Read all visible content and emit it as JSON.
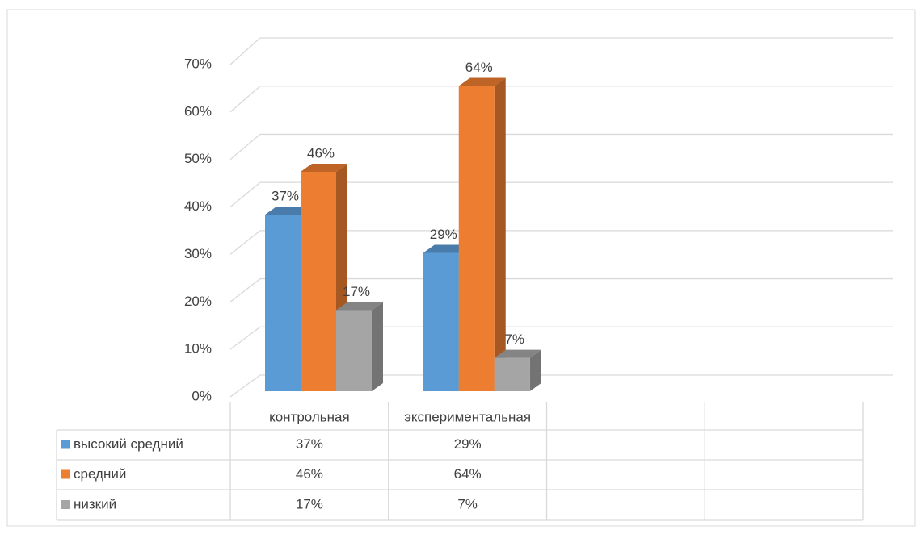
{
  "chart_data": {
    "type": "bar3d",
    "categories": [
      "контрольная",
      "экспериментальная",
      null,
      null
    ],
    "series": [
      {
        "name": "высокий средний",
        "color": "#5b9bd5",
        "values": [
          37,
          29,
          null,
          null
        ],
        "value_labels": [
          "37%",
          "29%",
          null,
          null
        ]
      },
      {
        "name": "средний",
        "color": "#ed7d31",
        "values": [
          46,
          64,
          null,
          null
        ],
        "value_labels": [
          "46%",
          "64%",
          null,
          null
        ]
      },
      {
        "name": "низкий",
        "color": "#a5a5a5",
        "values": [
          17,
          7,
          null,
          null
        ],
        "value_labels": [
          "17%",
          "7%",
          null,
          null
        ]
      }
    ],
    "ylim": [
      0,
      70
    ],
    "yticks": [
      {
        "value": 0,
        "label": "0%"
      },
      {
        "value": 10,
        "label": "10%"
      },
      {
        "value": 20,
        "label": "20%"
      },
      {
        "value": 30,
        "label": "30%"
      },
      {
        "value": 40,
        "label": "40%"
      },
      {
        "value": 50,
        "label": "50%"
      },
      {
        "value": 60,
        "label": "60%"
      },
      {
        "value": 70,
        "label": "70%"
      }
    ],
    "grid": true,
    "data_table": true
  }
}
